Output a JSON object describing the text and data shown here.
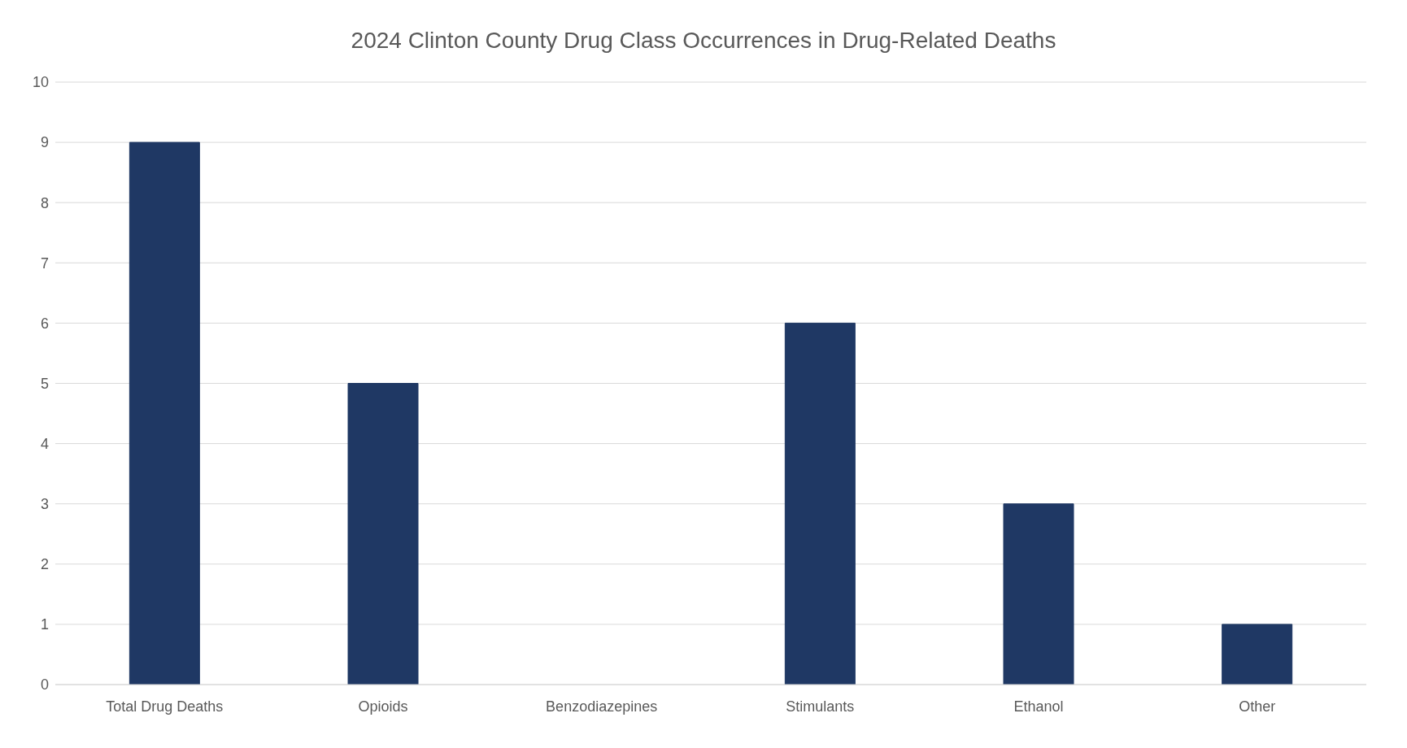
{
  "chart_data": {
    "type": "bar",
    "title": "2024 Clinton County Drug Class Occurrences in Drug-Related Deaths",
    "categories": [
      "Total Drug Deaths",
      "Opioids",
      "Benzodiazepines",
      "Stimulants",
      "Ethanol",
      "Other"
    ],
    "values": [
      9,
      5,
      0,
      6,
      3,
      1
    ],
    "color": "#1f3864",
    "ylim": [
      0,
      10
    ],
    "yticks": [
      0,
      1,
      2,
      3,
      4,
      5,
      6,
      7,
      8,
      9,
      10
    ],
    "grid": "y"
  }
}
